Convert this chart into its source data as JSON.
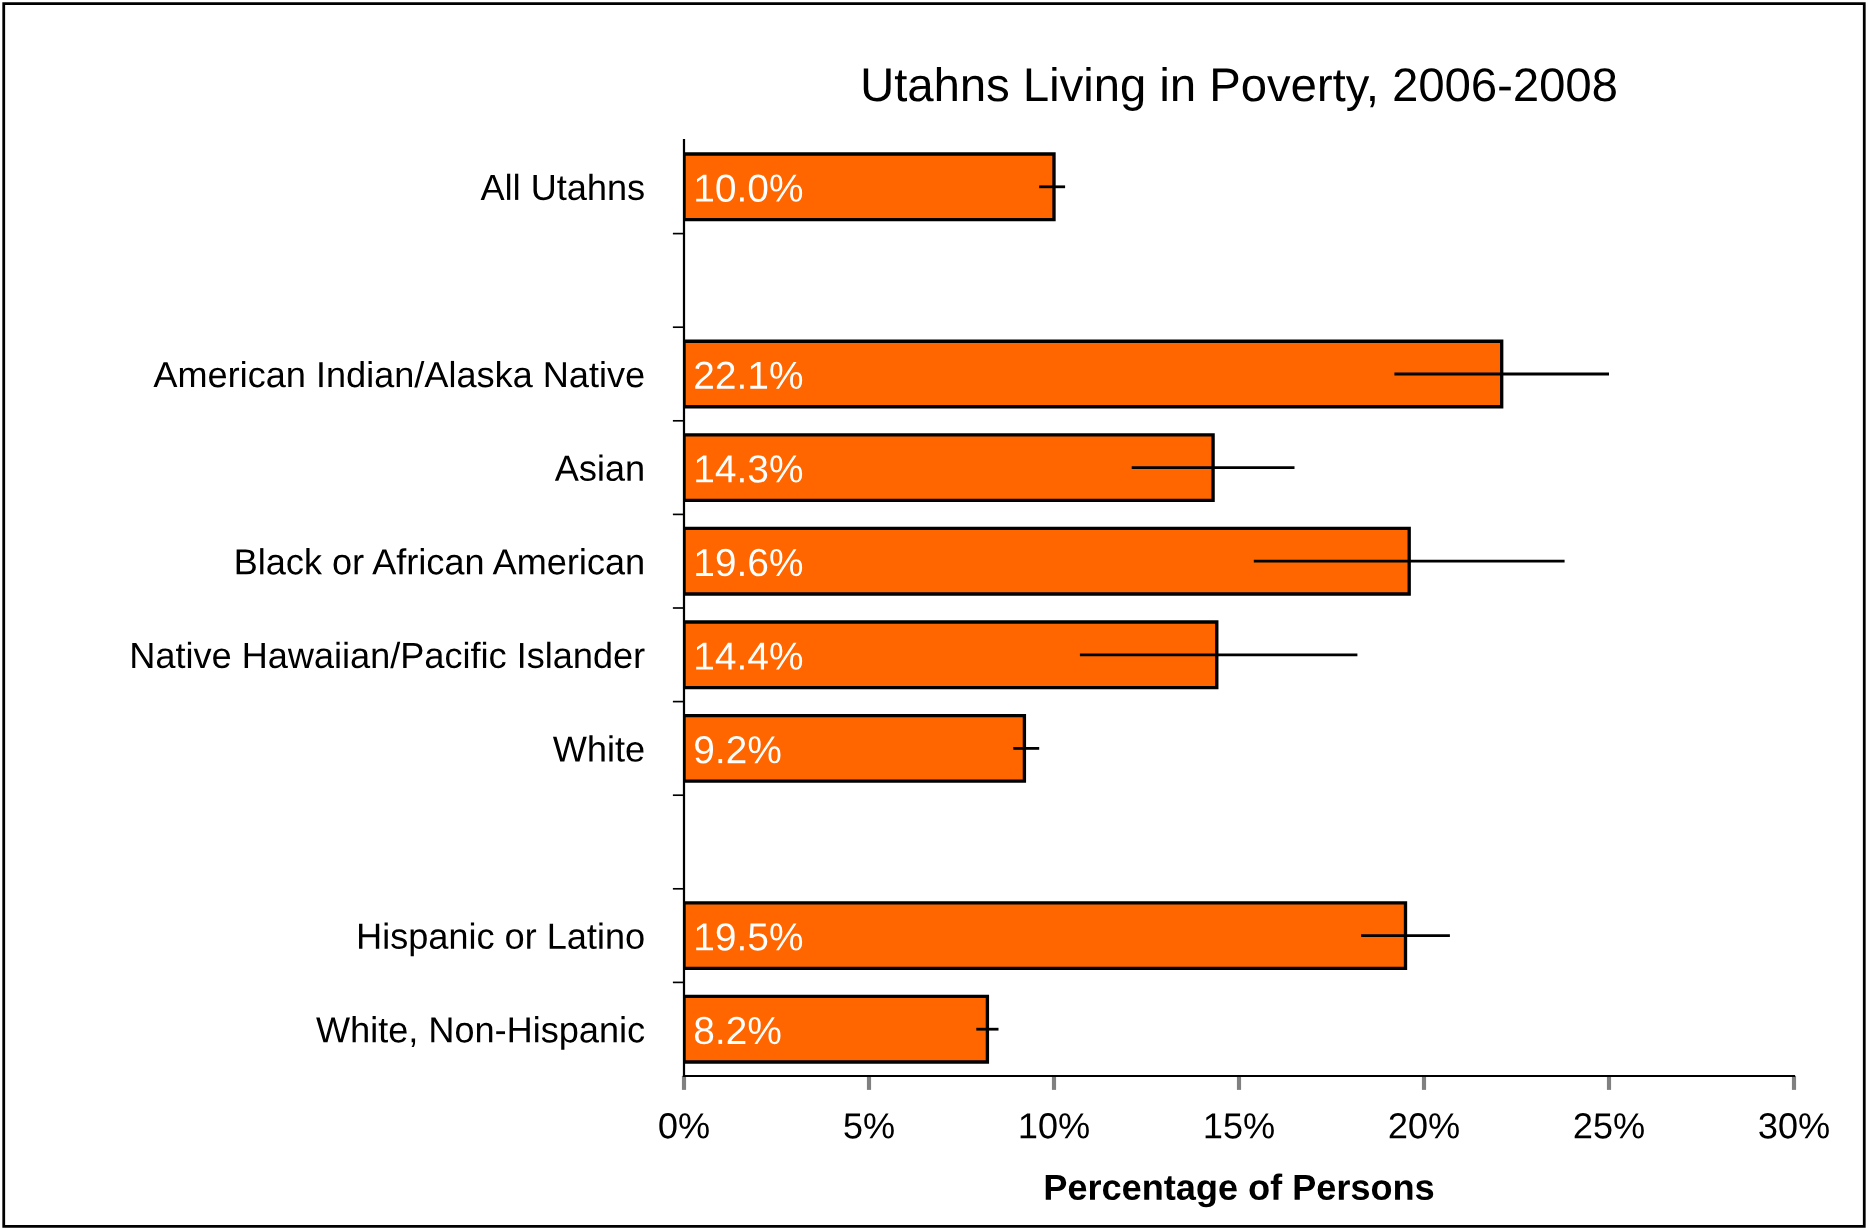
{
  "chart_data": {
    "type": "bar",
    "orientation": "horizontal",
    "title": "Utahns Living in Poverty, 2006-2008",
    "xlabel": "Percentage of Persons",
    "categories": [
      "All Utahns",
      null,
      "American Indian/Alaska Native",
      "Asian",
      "Black or African American",
      "Native Hawaiian/Pacific Islander",
      "White",
      null,
      "Hispanic or Latino",
      "White, Non-Hispanic"
    ],
    "values": [
      10.0,
      null,
      22.1,
      14.3,
      19.6,
      14.4,
      9.2,
      null,
      19.5,
      8.2
    ],
    "value_labels": [
      "10.0%",
      null,
      "22.1%",
      "14.3%",
      "19.6%",
      "14.4%",
      "9.2%",
      null,
      "19.5%",
      "8.2%"
    ],
    "errors": [
      [
        9.6,
        10.3
      ],
      null,
      [
        19.2,
        25.0
      ],
      [
        12.1,
        16.5
      ],
      [
        15.4,
        23.8
      ],
      [
        10.7,
        18.2
      ],
      [
        8.9,
        9.6
      ],
      null,
      [
        18.3,
        20.7
      ],
      [
        7.9,
        8.5
      ]
    ],
    "color": "#ff6600",
    "xlim": [
      0,
      30
    ],
    "xticks": [
      {
        "value": 0,
        "label": "0%"
      },
      {
        "value": 5,
        "label": "5%"
      },
      {
        "value": 10,
        "label": "10%"
      },
      {
        "value": 15,
        "label": "15%"
      },
      {
        "value": 20,
        "label": "20%"
      },
      {
        "value": 25,
        "label": "25%"
      },
      {
        "value": 30,
        "label": "30%"
      }
    ],
    "grid": false,
    "legend": false
  }
}
